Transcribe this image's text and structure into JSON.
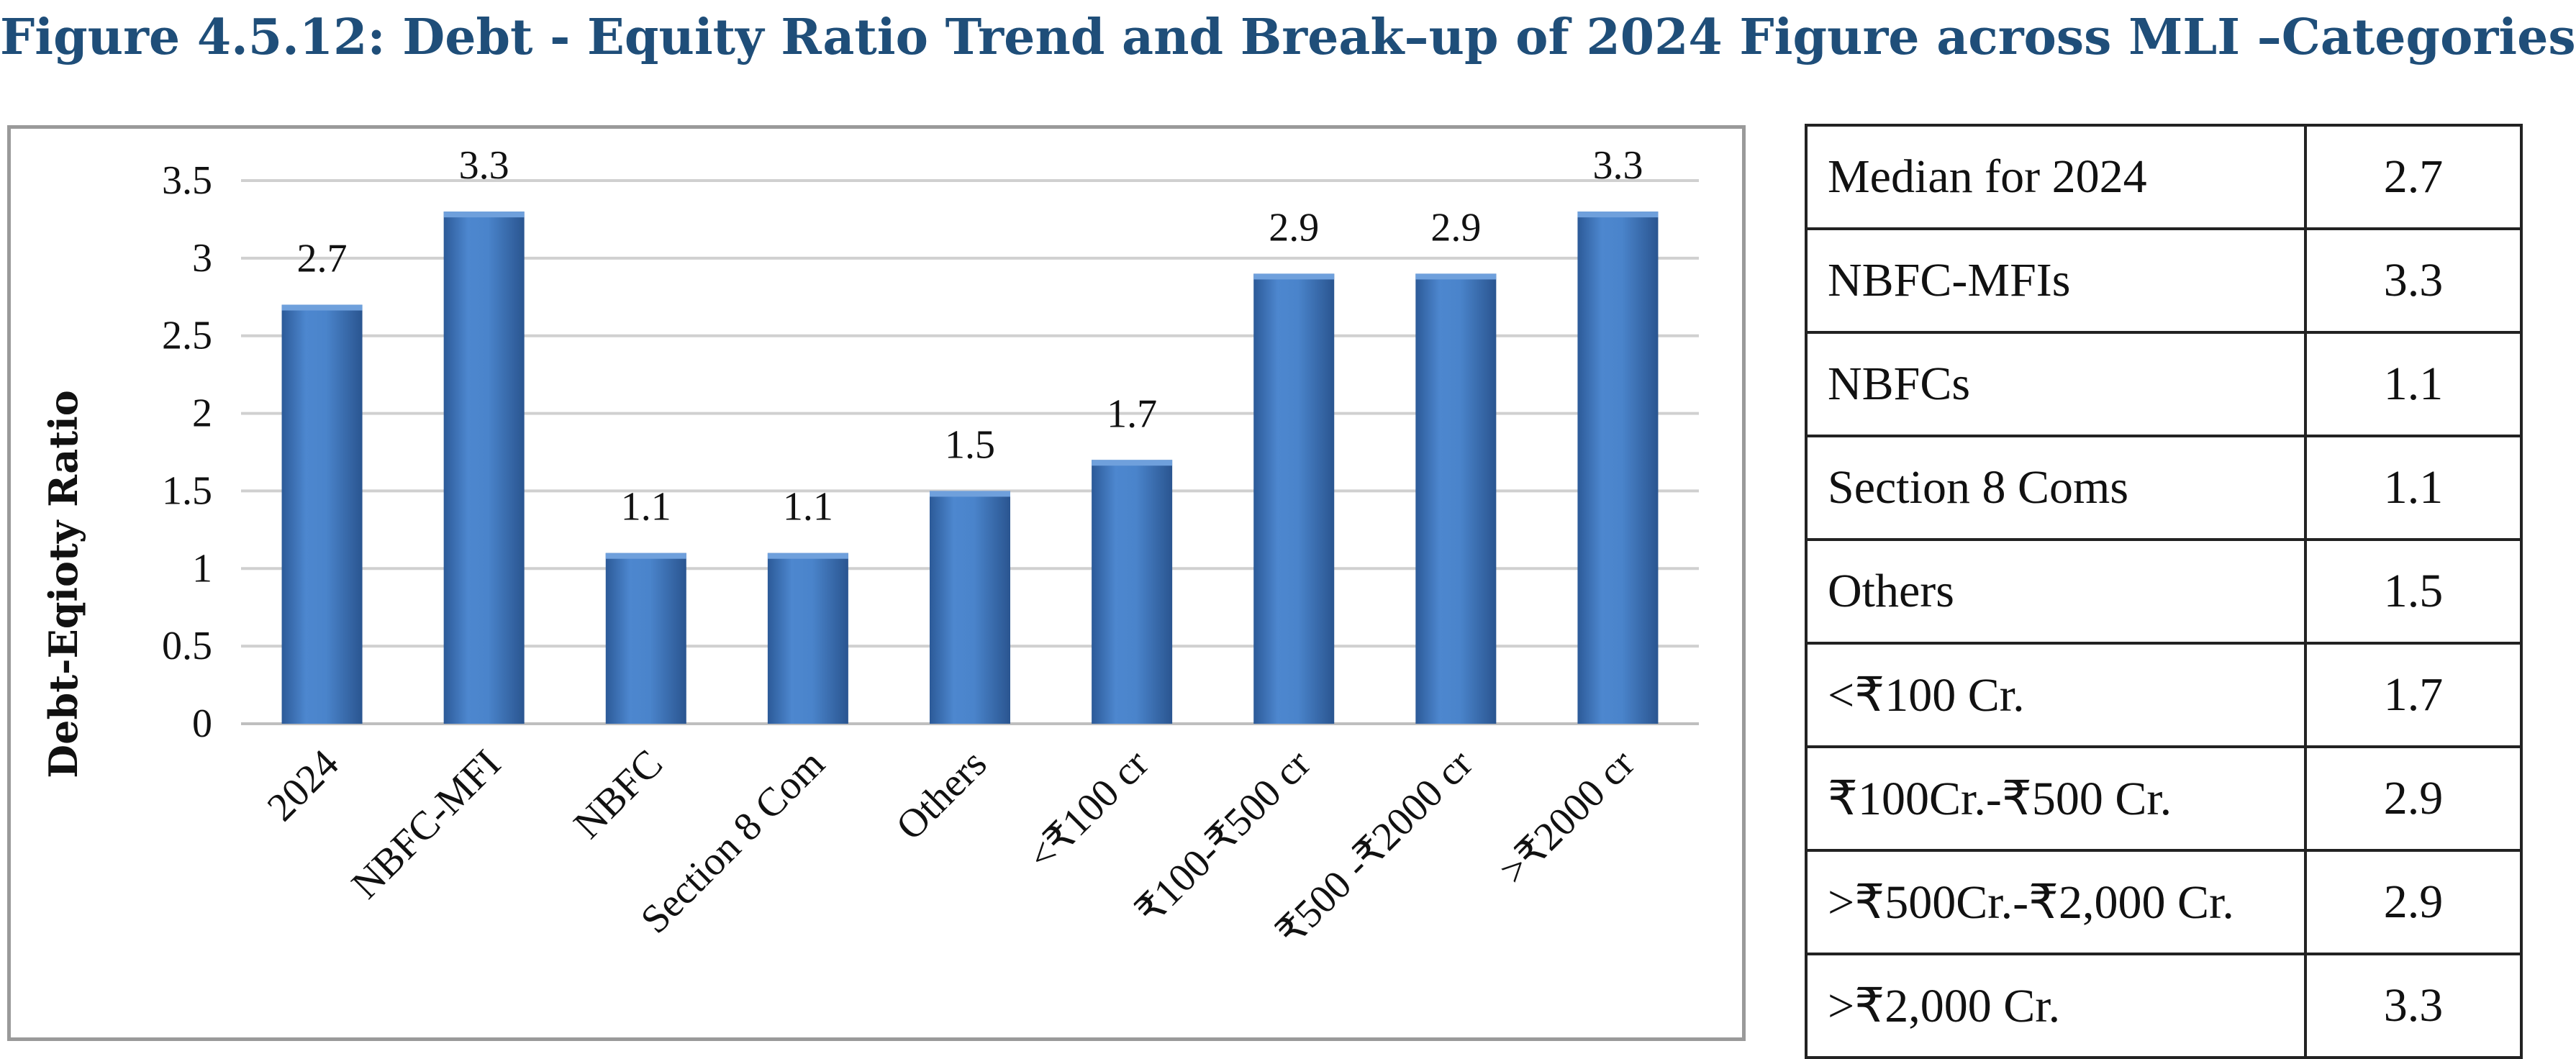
{
  "figure_title": "Figure 4.5.12: Debt - Equity Ratio Trend and Break–up of 2024 Figure across MLI –Categories",
  "colors": {
    "bar": "#3f78c0",
    "bar_dark": "#2a5590",
    "grid": "#d0d0d0",
    "title": "#1f4e79"
  },
  "chart_data": {
    "type": "bar",
    "title": "",
    "xlabel": "",
    "ylabel": "Debt-Eqioty Ratio",
    "ylim": [
      0,
      3.5
    ],
    "yticks": [
      "0",
      "0.5",
      "1",
      "1.5",
      "2",
      "2.5",
      "3",
      "3.5"
    ],
    "grid": true,
    "categories": [
      "2024",
      "NBFC-MFI",
      "NBFC",
      "Section 8 Com",
      "Others",
      "<₹100 cr",
      "₹100-₹500 cr",
      "₹500 -₹2000 cr",
      ">₹2000 cr"
    ],
    "values": [
      2.7,
      3.3,
      1.1,
      1.1,
      1.5,
      1.7,
      2.9,
      2.9,
      3.3
    ],
    "data_labels": [
      "2.7",
      "3.3",
      "1.1",
      "1.1",
      "1.5",
      "1.7",
      "2.9",
      "2.9",
      "3.3"
    ]
  },
  "table": {
    "rows": [
      {
        "label": "Median for 2024",
        "value": "2.7"
      },
      {
        "label": "NBFC-MFIs",
        "value": "3.3"
      },
      {
        "label": "NBFCs",
        "value": "1.1"
      },
      {
        "label": "Section 8 Coms",
        "value": "1.1"
      },
      {
        "label": "Others",
        "value": "1.5"
      },
      {
        "label": "<₹100 Cr.",
        "value": "1.7"
      },
      {
        "label": "₹100Cr.-₹500 Cr.",
        "value": "2.9"
      },
      {
        "label": ">₹500Cr.-₹2,000 Cr.",
        "value": "2.9"
      },
      {
        "label": ">₹2,000 Cr.",
        "value": "3.3"
      }
    ]
  }
}
